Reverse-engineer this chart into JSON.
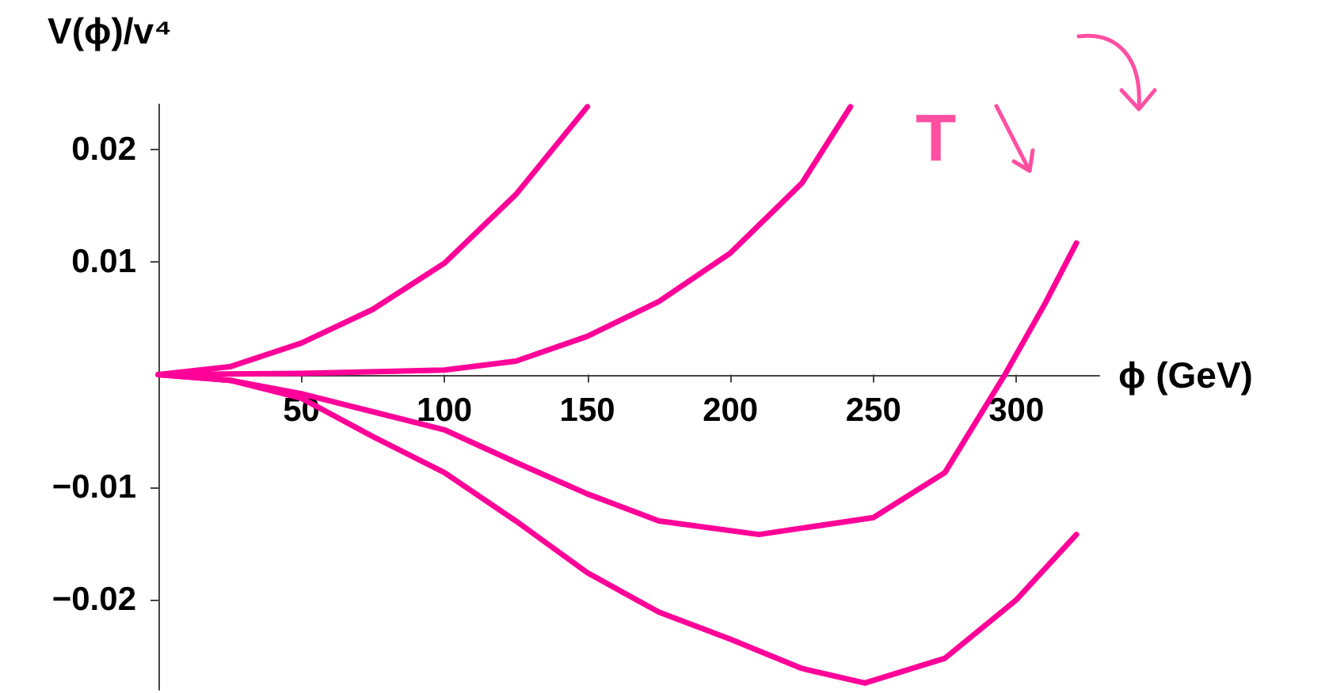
{
  "chart_data": {
    "type": "line",
    "xlabel": "ϕ (GeV)",
    "ylabel": "V(ϕ)/v⁴",
    "xlim": [
      0,
      329
    ],
    "ylim": [
      -0.028,
      0.024
    ],
    "xticks": [
      50,
      100,
      150,
      200,
      250,
      300
    ],
    "yticks": [
      -0.02,
      -0.01,
      0.01,
      0.02
    ],
    "marker": "none",
    "annotations": [
      "T"
    ],
    "series": [
      {
        "color": "#ff0099",
        "x": [
          0,
          25,
          50,
          75,
          100,
          125,
          150
        ],
        "values": [
          0,
          0.0007,
          0.0028,
          0.0058,
          0.0099,
          0.016,
          0.0238
        ]
      },
      {
        "color": "#ff0099",
        "x": [
          0,
          50,
          100,
          125,
          150,
          175,
          200,
          225,
          242
        ],
        "values": [
          0,
          0.0001,
          0.0004,
          0.0012,
          0.0034,
          0.0065,
          0.0108,
          0.017,
          0.0238
        ]
      },
      {
        "color": "#ff0099",
        "x": [
          0,
          25,
          50,
          75,
          100,
          125,
          150,
          175,
          210,
          250,
          275,
          296,
          310,
          321
        ],
        "values": [
          0,
          -0.0005,
          -0.0017,
          -0.0033,
          -0.0049,
          -0.0078,
          -0.0106,
          -0.013,
          -0.0142,
          -0.0127,
          -0.0087,
          0,
          0.0063,
          0.0117
        ]
      },
      {
        "color": "#ff0099",
        "x": [
          0,
          25,
          50,
          75,
          100,
          125,
          150,
          175,
          200,
          225,
          247,
          275,
          300,
          321
        ],
        "values": [
          0,
          -0.0005,
          -0.0021,
          -0.0055,
          -0.0087,
          -0.013,
          -0.0176,
          -0.0211,
          -0.0235,
          -0.0261,
          -0.0274,
          -0.0252,
          -0.02,
          -0.0142
        ]
      }
    ]
  }
}
